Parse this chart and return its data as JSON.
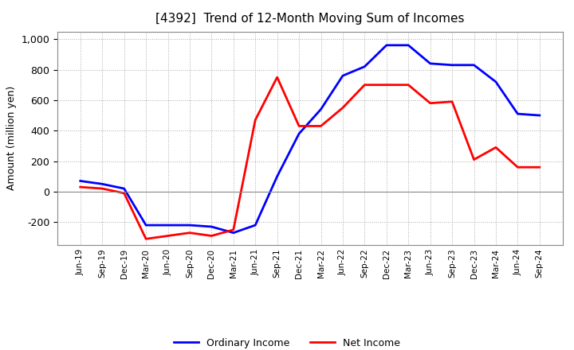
{
  "title": "[4392]  Trend of 12-Month Moving Sum of Incomes",
  "ylabel": "Amount (million yen)",
  "x_labels": [
    "Jun-19",
    "Sep-19",
    "Dec-19",
    "Mar-20",
    "Jun-20",
    "Sep-20",
    "Dec-20",
    "Mar-21",
    "Jun-21",
    "Sep-21",
    "Dec-21",
    "Mar-22",
    "Jun-22",
    "Sep-22",
    "Dec-22",
    "Mar-23",
    "Jun-23",
    "Sep-23",
    "Dec-23",
    "Mar-24",
    "Jun-24",
    "Sep-24"
  ],
  "ordinary_income": [
    70,
    50,
    20,
    -220,
    -220,
    -220,
    -230,
    -270,
    -220,
    100,
    380,
    540,
    760,
    820,
    960,
    960,
    840,
    830,
    830,
    720,
    510,
    500
  ],
  "net_income": [
    30,
    20,
    -10,
    -310,
    -290,
    -270,
    -290,
    -250,
    470,
    750,
    430,
    430,
    550,
    700,
    700,
    700,
    580,
    590,
    210,
    290,
    160,
    160
  ],
  "ordinary_income_color": "#0000ff",
  "net_income_color": "#ff0000",
  "ylim": [
    -350,
    1050
  ],
  "yticks": [
    -200,
    0,
    200,
    400,
    600,
    800,
    1000
  ],
  "grid_color": "#aaaaaa",
  "background_color": "#ffffff",
  "title_fontsize": 11,
  "legend_labels": [
    "Ordinary Income",
    "Net Income"
  ]
}
